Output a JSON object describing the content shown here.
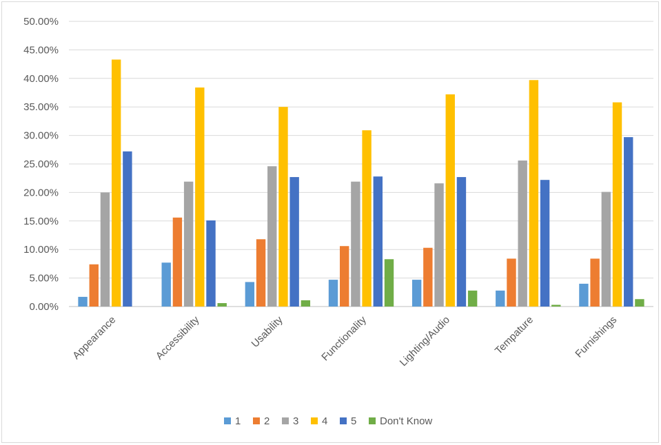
{
  "chart_data": {
    "type": "bar",
    "title": "",
    "xlabel": "",
    "ylabel": "",
    "ylim": [
      0,
      0.5
    ],
    "y_ticks": [
      "0.00%",
      "5.00%",
      "10.00%",
      "15.00%",
      "20.00%",
      "25.00%",
      "30.00%",
      "35.00%",
      "40.00%",
      "45.00%",
      "50.00%"
    ],
    "y_tick_values": [
      0,
      0.05,
      0.1,
      0.15,
      0.2,
      0.25,
      0.3,
      0.35,
      0.4,
      0.45,
      0.5
    ],
    "grid": true,
    "legend_position": "bottom",
    "categories": [
      "Appearance",
      "Accessibility",
      "Usability",
      "Functionality",
      "Lighting/Audio",
      "Tempature",
      "Furnishings"
    ],
    "series": [
      {
        "name": "1",
        "color": "#5B9BD5",
        "values": [
          0.017,
          0.077,
          0.043,
          0.047,
          0.047,
          0.028,
          0.04
        ]
      },
      {
        "name": "2",
        "color": "#ED7D31",
        "values": [
          0.074,
          0.156,
          0.118,
          0.106,
          0.103,
          0.084,
          0.084
        ]
      },
      {
        "name": "3",
        "color": "#A5A5A5",
        "values": [
          0.2,
          0.219,
          0.246,
          0.219,
          0.216,
          0.256,
          0.201
        ]
      },
      {
        "name": "4",
        "color": "#FFC000",
        "values": [
          0.433,
          0.384,
          0.35,
          0.309,
          0.372,
          0.397,
          0.358
        ]
      },
      {
        "name": "5",
        "color": "#4472C4",
        "values": [
          0.272,
          0.151,
          0.227,
          0.228,
          0.227,
          0.222,
          0.297
        ]
      },
      {
        "name": "Don't Know",
        "color": "#70AD47",
        "values": [
          0.0,
          0.006,
          0.011,
          0.083,
          0.028,
          0.003,
          0.013
        ]
      }
    ]
  }
}
